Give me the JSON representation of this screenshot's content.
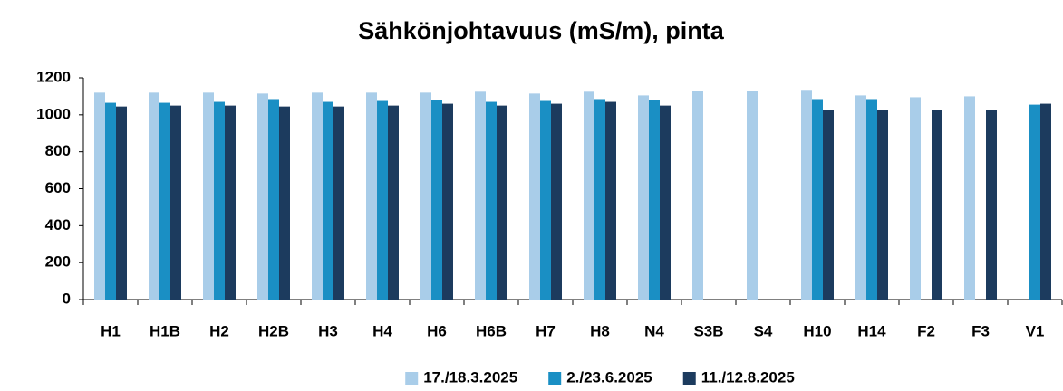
{
  "chart_data": {
    "type": "bar",
    "title": "Sähkönjohtavuus (mS/m), pinta",
    "categories": [
      "H1",
      "H1B",
      "H2",
      "H2B",
      "H3",
      "H4",
      "H6",
      "H6B",
      "H7",
      "H8",
      "N4",
      "S3B",
      "S4",
      "H10",
      "H14",
      "F2",
      "F3",
      "V1"
    ],
    "series": [
      {
        "name": "17./18.3.2025",
        "color": "#a9cde9",
        "values": [
          1120,
          1120,
          1120,
          1115,
          1120,
          1120,
          1120,
          1125,
          1115,
          1125,
          1105,
          1130,
          1130,
          1135,
          1105,
          1095,
          1100,
          null
        ]
      },
      {
        "name": "2./23.6.2025",
        "color": "#1a8fc4",
        "values": [
          1065,
          1065,
          1070,
          1085,
          1070,
          1075,
          1080,
          1070,
          1075,
          1085,
          1080,
          null,
          null,
          1085,
          1085,
          null,
          null,
          1055
        ]
      },
      {
        "name": "11./12.8.2025",
        "color": "#1c3b5e",
        "values": [
          1045,
          1050,
          1050,
          1045,
          1045,
          1050,
          1060,
          1050,
          1060,
          1070,
          1050,
          null,
          null,
          1025,
          1025,
          1025,
          1025,
          1060
        ]
      }
    ],
    "ylim": [
      0,
      1200
    ],
    "yticks": [
      0,
      200,
      400,
      600,
      800,
      1000,
      1200
    ],
    "legend": "bottom"
  }
}
